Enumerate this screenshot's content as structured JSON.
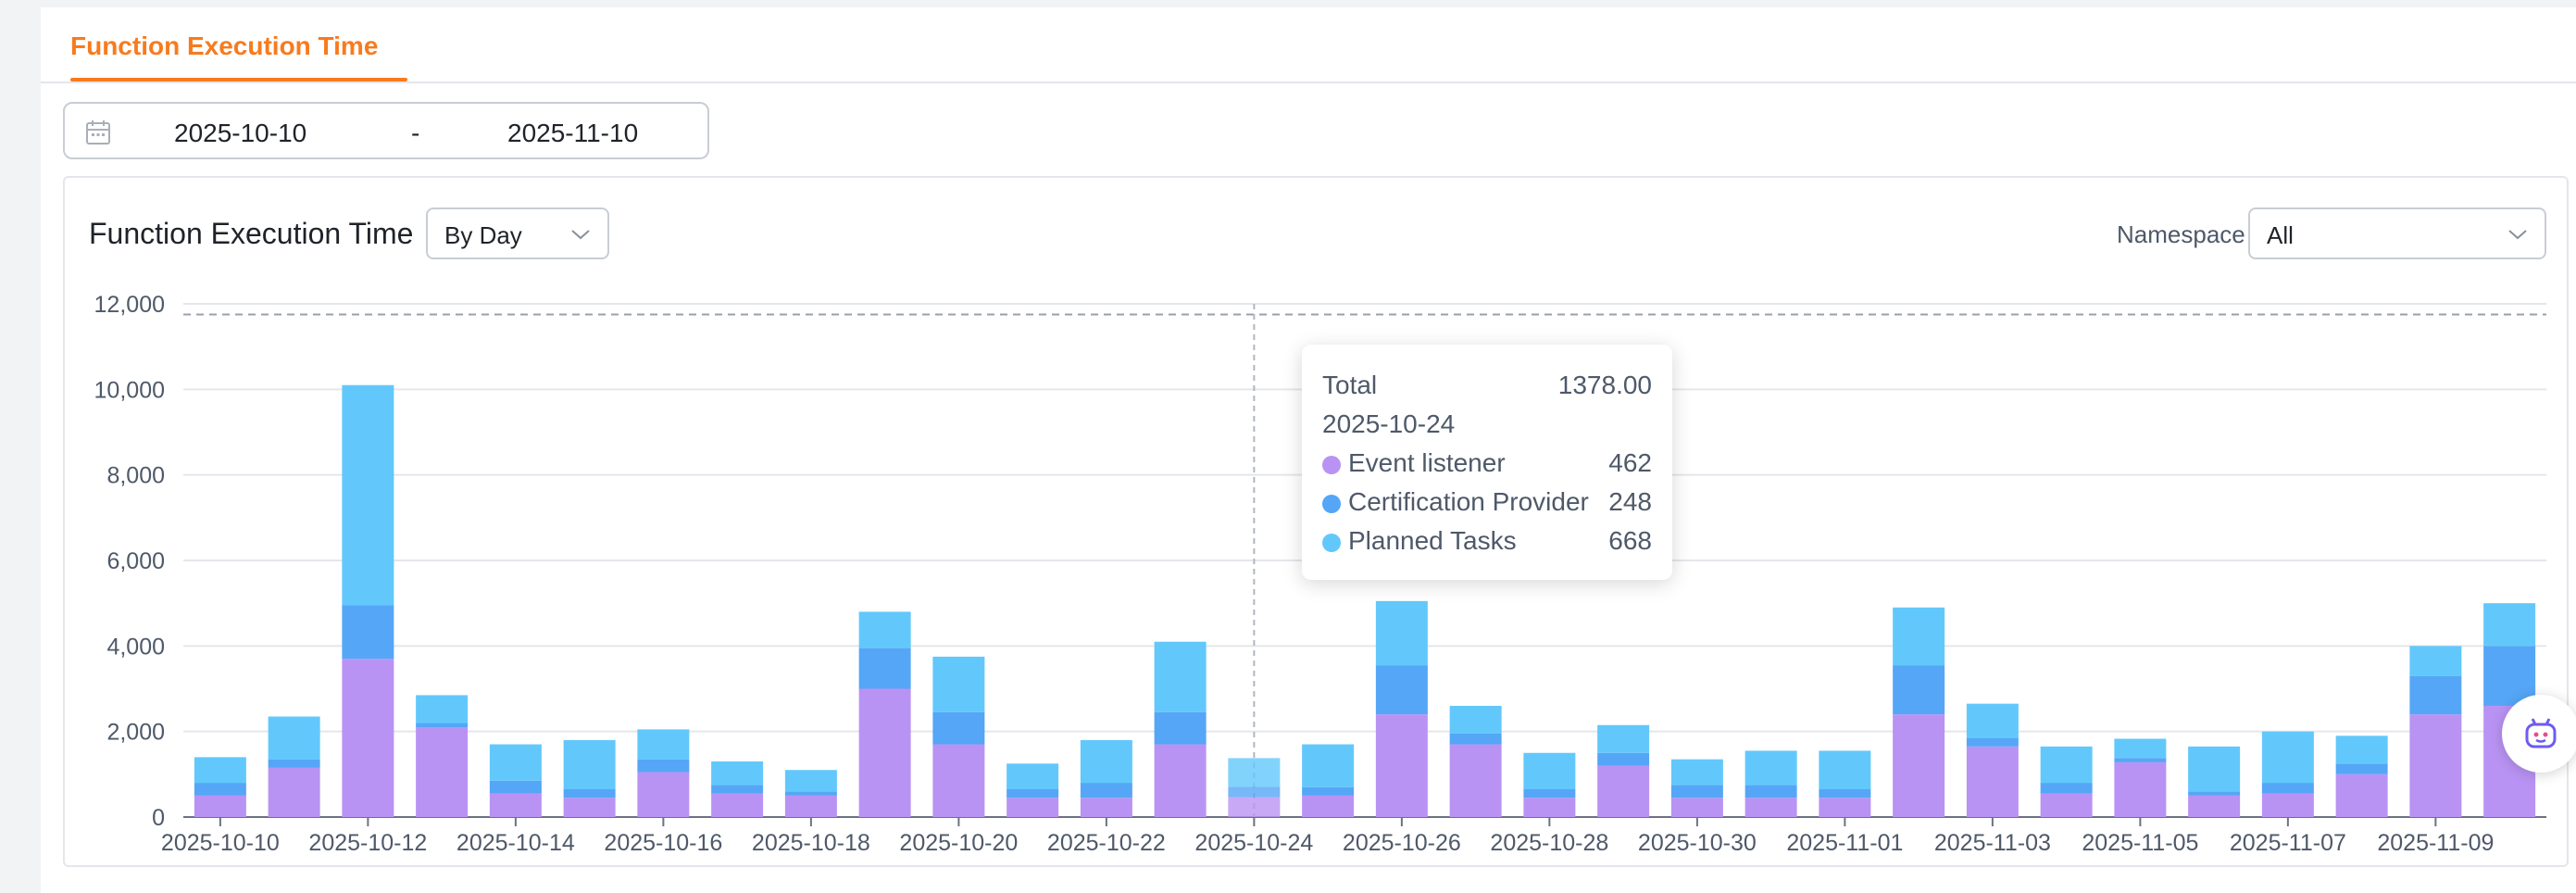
{
  "tabs": [
    {
      "label": "Function Execution Time",
      "active": true
    }
  ],
  "date_range": {
    "start": "2025-10-10",
    "separator": "-",
    "end": "2025-11-10"
  },
  "card": {
    "title": "Function Execution Time",
    "granularity": "By Day",
    "namespace_label": "Namespace",
    "namespace_value": "All"
  },
  "colors": {
    "accent": "#f77b1e",
    "event_listener": "#b993f3",
    "certification_provider": "#55a6f6",
    "planned_tasks": "#62c8fb"
  },
  "tooltip": {
    "total_label": "Total",
    "total_value": "1378.00",
    "date": "2025-10-24",
    "rows": [
      {
        "name": "Event listener",
        "value": "462"
      },
      {
        "name": "Certification Provider",
        "value": "248"
      },
      {
        "name": "Planned Tasks",
        "value": "668"
      }
    ]
  },
  "chart_data": {
    "type": "bar",
    "stacked": true,
    "title": "Function Execution Time",
    "x": [
      "2025-10-10",
      "2025-10-11",
      "2025-10-12",
      "2025-10-13",
      "2025-10-14",
      "2025-10-15",
      "2025-10-16",
      "2025-10-17",
      "2025-10-18",
      "2025-10-19",
      "2025-10-20",
      "2025-10-21",
      "2025-10-22",
      "2025-10-23",
      "2025-10-24",
      "2025-10-25",
      "2025-10-26",
      "2025-10-27",
      "2025-10-28",
      "2025-10-29",
      "2025-10-30",
      "2025-10-31",
      "2025-11-01",
      "2025-11-02",
      "2025-11-03",
      "2025-11-04",
      "2025-11-05",
      "2025-11-06",
      "2025-11-07",
      "2025-11-08",
      "2025-11-09",
      "2025-11-10"
    ],
    "x_tick_labels": [
      "2025-10-10",
      "2025-10-12",
      "2025-10-14",
      "2025-10-16",
      "2025-10-18",
      "2025-10-20",
      "2025-10-22",
      "2025-10-24",
      "2025-10-26",
      "2025-10-28",
      "2025-10-30",
      "2025-11-01",
      "2025-11-03",
      "2025-11-05",
      "2025-11-07",
      "2025-11-09"
    ],
    "series": [
      {
        "name": "Event listener",
        "color": "#b993f3",
        "values": [
          500,
          1150,
          3700,
          2100,
          550,
          450,
          1050,
          550,
          500,
          3000,
          1700,
          450,
          450,
          1700,
          462,
          500,
          2400,
          1700,
          450,
          1200,
          450,
          450,
          450,
          2400,
          1650,
          550,
          1280,
          500,
          550,
          1000,
          2400,
          2600
        ]
      },
      {
        "name": "Certification Provider",
        "color": "#55a6f6",
        "values": [
          300,
          200,
          1250,
          100,
          300,
          200,
          300,
          200,
          100,
          950,
          750,
          200,
          350,
          750,
          248,
          200,
          1150,
          250,
          200,
          300,
          300,
          300,
          200,
          1150,
          200,
          250,
          100,
          100,
          250,
          250,
          900,
          1400
        ]
      },
      {
        "name": "Planned Tasks",
        "color": "#62c8fb",
        "values": [
          600,
          1000,
          5150,
          650,
          850,
          1150,
          700,
          550,
          500,
          850,
          1300,
          600,
          1000,
          1650,
          668,
          1000,
          1500,
          650,
          850,
          650,
          600,
          800,
          900,
          1350,
          800,
          850,
          450,
          1050,
          1200,
          650,
          700,
          1000
        ]
      }
    ],
    "ylim": [
      0,
      12000
    ],
    "y_ticks": [
      "0",
      "2,000",
      "4,000",
      "6,000",
      "8,000",
      "10,000",
      "12,000"
    ],
    "reference_line": 11750,
    "hover_category": "2025-10-24",
    "grid": true,
    "legend": "none"
  }
}
